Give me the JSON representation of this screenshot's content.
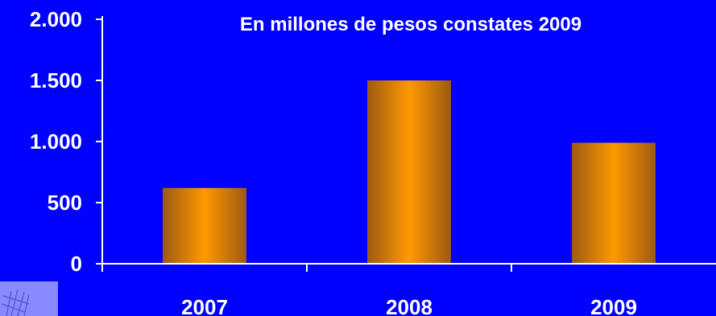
{
  "chart_data": {
    "type": "bar",
    "title": "En millones de pesos constates 2009",
    "categories": [
      "2007",
      "2008",
      "2009"
    ],
    "values": [
      620,
      1500,
      990
    ],
    "ylim": [
      0,
      2000
    ],
    "yticks": [
      0,
      500,
      1000,
      1500,
      2000
    ],
    "ytick_labels": [
      "0",
      "500",
      "1.000",
      "1.500",
      "2.000"
    ],
    "xlabel": "",
    "ylabel": "",
    "grid": false,
    "legend": "none"
  },
  "colors": {
    "background": "#0000FF",
    "bar_light": "#FF9900",
    "bar_dark": "#9C5A12",
    "text": "#FFFFFF",
    "axis": "#FFFFFF"
  },
  "logo": {
    "icon": "emblem-logo"
  }
}
